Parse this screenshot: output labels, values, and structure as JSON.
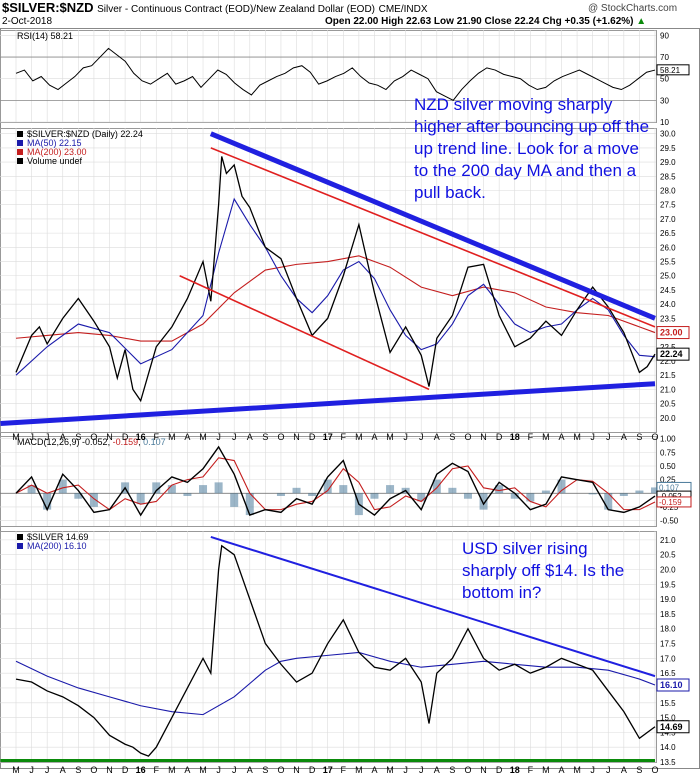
{
  "header": {
    "symbol": "$SILVER:$NZD",
    "description": "Silver - Continuous Contract (EOD)/New Zealand Dollar (EOD)",
    "exchange": "CME/INDX",
    "date": "2-Oct-2018",
    "ohlc": "Open 22.00  High 22.63  Low 21.90  Close 22.24  Chg +0.35 (+1.62%)",
    "ohlc_arrow": "▲",
    "watermark": "@ StockCharts.com"
  },
  "colors": {
    "price": "#000000",
    "ma50": "#1a1aaa",
    "ma200": "#c41e1e",
    "trend_blue": "#2020e0",
    "trend_red": "#e02020",
    "green": "#0a8a0a",
    "grid": "#dcdcdc",
    "macd_hist": "#4a7a9a",
    "annotation": "#1010e0"
  },
  "x_axis": {
    "labels": [
      "M",
      "J",
      "J",
      "A",
      "S",
      "O",
      "N",
      "D",
      "16",
      "F",
      "M",
      "A",
      "M",
      "J",
      "J",
      "A",
      "S",
      "O",
      "N",
      "D",
      "17",
      "F",
      "M",
      "A",
      "M",
      "J",
      "J",
      "A",
      "S",
      "O",
      "N",
      "D",
      "18",
      "F",
      "M",
      "A",
      "M",
      "J",
      "J",
      "A",
      "S",
      "O"
    ],
    "bold": [
      "16",
      "17",
      "18"
    ]
  },
  "chart_data": [
    {
      "type": "line",
      "title": "RSI(14) 58.21",
      "yticks": [
        90,
        70,
        50,
        30,
        10
      ],
      "ylim": [
        10,
        95
      ],
      "overbought": 70,
      "oversold": 30,
      "last_value": 58.21,
      "last_label": "58.21",
      "series": [
        {
          "values": [
            55,
            58,
            48,
            52,
            44,
            40,
            46,
            52,
            60,
            62,
            70,
            78,
            72,
            66,
            55,
            48,
            45,
            50,
            55,
            45,
            48,
            52,
            42,
            50,
            58,
            54,
            46,
            40,
            35,
            44,
            48,
            52,
            55,
            60,
            62,
            56,
            45,
            48,
            52,
            55,
            60,
            52,
            46,
            44,
            40,
            48,
            52,
            58,
            54,
            50,
            38,
            34,
            30,
            40,
            48,
            55,
            60,
            58,
            54,
            52,
            50,
            44,
            40,
            42,
            48,
            52,
            55,
            58,
            54,
            50,
            46,
            42,
            40,
            44,
            50,
            56,
            58
          ]
        }
      ]
    },
    {
      "type": "line",
      "title": "$SILVER:$NZD (Daily) 22.24",
      "legend": [
        "$SILVER:$NZD (Daily) 22.24",
        "MA(50) 22.15",
        "MA(200) 23.00",
        "Volume undef"
      ],
      "ylim": [
        19.5,
        30.2
      ],
      "yticks": [
        30.0,
        29.5,
        29.0,
        28.5,
        28.0,
        27.5,
        27.0,
        26.5,
        26.0,
        25.5,
        25.0,
        24.5,
        24.0,
        23.5,
        23.0,
        22.5,
        22.0,
        21.5,
        21.0,
        20.5,
        20.0
      ],
      "x_range": [
        0,
        41
      ],
      "price": {
        "x": [
          0,
          1,
          1.5,
          2,
          3,
          4,
          5,
          6,
          6.5,
          7,
          7.5,
          8,
          9,
          10,
          11,
          12,
          12.5,
          13,
          13.2,
          13.5,
          14,
          14.5,
          15,
          16,
          17,
          18,
          19,
          20,
          21,
          22,
          23,
          24,
          25,
          26,
          26.5,
          27,
          28,
          29,
          30,
          31,
          32,
          33,
          34,
          35,
          36,
          37,
          38,
          39,
          40,
          40.5,
          41
        ],
        "y": [
          21.6,
          22.9,
          23.2,
          22.6,
          23.5,
          24.2,
          23.4,
          22.5,
          21.4,
          22.4,
          21.0,
          20.6,
          22.5,
          23.2,
          24.2,
          25.5,
          24.1,
          27.5,
          29.2,
          28.6,
          28.9,
          27.8,
          27.4,
          26.0,
          25.6,
          24.2,
          22.9,
          23.5,
          25.0,
          26.8,
          24.4,
          22.3,
          23.2,
          22.2,
          21.1,
          22.8,
          23.6,
          25.3,
          25.4,
          23.6,
          22.5,
          22.8,
          23.4,
          22.9,
          23.8,
          24.6,
          23.9,
          23.0,
          21.6,
          21.8,
          22.24
        ]
      },
      "ma50": {
        "x": [
          0,
          2,
          4,
          6,
          8,
          10,
          12,
          13,
          14,
          15,
          16,
          17,
          18,
          19,
          20,
          21,
          22,
          23,
          24,
          25,
          26,
          27,
          28,
          29,
          30,
          31,
          32,
          33,
          34,
          35,
          36,
          37,
          38,
          39,
          40,
          41
        ],
        "y": [
          21.5,
          22.5,
          23.3,
          23.0,
          21.9,
          22.4,
          23.6,
          25.8,
          27.7,
          26.8,
          26.0,
          25.0,
          24.2,
          23.7,
          24.3,
          25.2,
          25.5,
          24.9,
          23.8,
          22.9,
          22.4,
          22.6,
          23.3,
          24.3,
          24.7,
          24.0,
          23.3,
          23.0,
          23.2,
          23.3,
          23.8,
          24.2,
          23.8,
          22.9,
          22.2,
          22.15
        ]
      },
      "ma200": {
        "x": [
          0,
          2,
          4,
          6,
          8,
          10,
          12,
          14,
          16,
          18,
          20,
          22,
          24,
          26,
          28,
          30,
          32,
          34,
          36,
          38,
          40,
          41
        ],
        "y": [
          22.8,
          22.9,
          23.0,
          22.9,
          22.7,
          22.7,
          23.3,
          24.4,
          25.2,
          25.4,
          25.5,
          25.7,
          25.3,
          24.6,
          24.3,
          24.6,
          24.4,
          23.9,
          23.7,
          23.6,
          23.2,
          23.0
        ]
      },
      "upper_trend_blue": {
        "x": [
          12.5,
          41
        ],
        "y": [
          30.0,
          23.5
        ]
      },
      "upper_trend_red": {
        "x": [
          12.5,
          41
        ],
        "y": [
          29.5,
          23.2
        ]
      },
      "lower_trend_blue": {
        "x": [
          -1,
          41
        ],
        "y": [
          19.8,
          21.2
        ]
      },
      "channel_red": {
        "x": [
          10.5,
          26.5
        ],
        "y": [
          25.0,
          21.0
        ]
      },
      "last_values": [
        {
          "label": "23.00",
          "value": 23.0,
          "style": "red"
        },
        {
          "label": "22.24",
          "value": 22.24,
          "style": "black"
        }
      ],
      "annotation": "NZD silver moving sharply higher after bouncing up off the up trend line. Look for a move to the 200 day MA and then a pull back."
    },
    {
      "type": "line",
      "title": "MACD(12,26,9) -0.052, -0.159, 0.107",
      "title_parts": {
        "label": "MACD(12,26,9)",
        "macd": "-0.052",
        "signal": "-0.159",
        "hist": "0.107"
      },
      "ylim": [
        -0.6,
        1.05
      ],
      "yticks": [
        1.0,
        0.75,
        0.5,
        0.25,
        0.0,
        -0.25,
        -0.5
      ],
      "zero": 0,
      "macd": {
        "x": [
          0,
          1,
          2,
          3,
          4,
          5,
          6,
          7,
          8,
          9,
          10,
          11,
          12,
          13,
          14,
          15,
          16,
          17,
          18,
          19,
          20,
          21,
          22,
          23,
          24,
          25,
          26,
          27,
          28,
          29,
          30,
          31,
          32,
          33,
          34,
          35,
          36,
          37,
          38,
          39,
          40,
          41
        ],
        "y": [
          0.0,
          0.3,
          -0.3,
          0.35,
          0.05,
          -0.35,
          -0.3,
          0.1,
          -0.4,
          0.05,
          0.3,
          0.2,
          0.45,
          0.85,
          0.35,
          -0.4,
          -0.3,
          -0.35,
          -0.1,
          -0.2,
          0.3,
          0.6,
          -0.2,
          -0.4,
          -0.1,
          0.05,
          -0.3,
          0.35,
          0.55,
          0.4,
          -0.2,
          0.2,
          0.0,
          -0.3,
          -0.2,
          0.3,
          0.25,
          0.2,
          -0.3,
          -0.35,
          -0.25,
          -0.052
        ]
      },
      "signal": {
        "x": [
          0,
          1,
          2,
          3,
          4,
          5,
          6,
          7,
          8,
          9,
          10,
          11,
          12,
          13,
          14,
          15,
          16,
          17,
          18,
          19,
          20,
          21,
          22,
          23,
          24,
          25,
          26,
          27,
          28,
          29,
          30,
          31,
          32,
          33,
          34,
          35,
          36,
          37,
          38,
          39,
          40,
          41
        ],
        "y": [
          0.0,
          0.15,
          0.0,
          0.1,
          0.15,
          -0.1,
          -0.3,
          -0.1,
          -0.2,
          -0.15,
          0.15,
          0.25,
          0.3,
          0.65,
          0.6,
          0.0,
          -0.3,
          -0.3,
          -0.2,
          -0.15,
          0.05,
          0.45,
          0.2,
          -0.3,
          -0.25,
          -0.05,
          -0.15,
          0.1,
          0.45,
          0.5,
          0.1,
          0.05,
          0.1,
          -0.15,
          -0.25,
          0.05,
          0.25,
          0.22,
          0.0,
          -0.3,
          -0.3,
          -0.159
        ]
      },
      "last_values": [
        {
          "label": "0.107",
          "value": 0.107,
          "style": "hist"
        },
        {
          "label": "-0.052",
          "value": -0.052,
          "style": "black"
        },
        {
          "label": "-0.159",
          "value": -0.159,
          "style": "red"
        }
      ]
    },
    {
      "type": "line",
      "title": "$SILVER 14.69",
      "legend": [
        "$SILVER 14.69",
        "MA(200) 16.10"
      ],
      "ylim": [
        13.5,
        21.3
      ],
      "yticks": [
        21.0,
        20.5,
        20.0,
        19.5,
        19.0,
        18.5,
        18.0,
        17.5,
        17.0,
        16.5,
        16.0,
        15.5,
        15.0,
        14.5,
        14.0,
        13.5
      ],
      "x_range": [
        0,
        41
      ],
      "price": {
        "x": [
          0,
          1,
          2,
          3,
          4,
          5,
          6,
          7,
          7.5,
          8,
          8.5,
          9,
          10,
          11,
          12,
          12.5,
          13,
          13.2,
          14,
          15,
          16,
          17,
          18,
          19,
          20,
          21,
          22,
          23,
          24,
          25,
          26,
          26.5,
          27,
          28,
          29,
          30,
          31,
          32,
          33,
          34,
          35,
          36,
          37,
          38,
          39,
          40,
          41
        ],
        "y": [
          16.3,
          16.2,
          15.9,
          15.7,
          15.4,
          15.0,
          14.4,
          14.1,
          14.0,
          13.8,
          13.7,
          14.0,
          15.0,
          16.0,
          17.0,
          16.5,
          20.0,
          20.8,
          20.5,
          19.0,
          17.5,
          16.8,
          16.2,
          16.5,
          17.5,
          18.3,
          17.2,
          16.7,
          16.6,
          17.0,
          16.2,
          14.8,
          16.5,
          17.0,
          18.0,
          17.0,
          16.6,
          16.8,
          16.5,
          16.7,
          17.0,
          16.8,
          16.6,
          15.9,
          15.2,
          14.3,
          14.69
        ]
      },
      "ma200": {
        "x": [
          0,
          2,
          4,
          6,
          8,
          10,
          12,
          14,
          16,
          17,
          18,
          20,
          22,
          24,
          26,
          28,
          30,
          32,
          34,
          36,
          38,
          40,
          41
        ],
        "y": [
          16.9,
          16.4,
          16.0,
          15.7,
          15.4,
          15.2,
          15.1,
          15.7,
          16.6,
          16.9,
          17.0,
          17.1,
          17.2,
          16.9,
          16.7,
          16.8,
          16.9,
          16.8,
          16.7,
          16.7,
          16.6,
          16.3,
          16.1
        ]
      },
      "trend_blue": {
        "x": [
          12.5,
          41
        ],
        "y": [
          21.1,
          16.4
        ]
      },
      "support_green": {
        "x": [
          -1,
          41
        ],
        "y": [
          13.55,
          13.55
        ]
      },
      "last_values": [
        {
          "label": "16.10",
          "value": 16.1,
          "style": "blue"
        },
        {
          "label": "14.69",
          "value": 14.69,
          "style": "black"
        }
      ],
      "annotation": "USD silver rising sharply off $14. Is the bottom in?"
    }
  ]
}
